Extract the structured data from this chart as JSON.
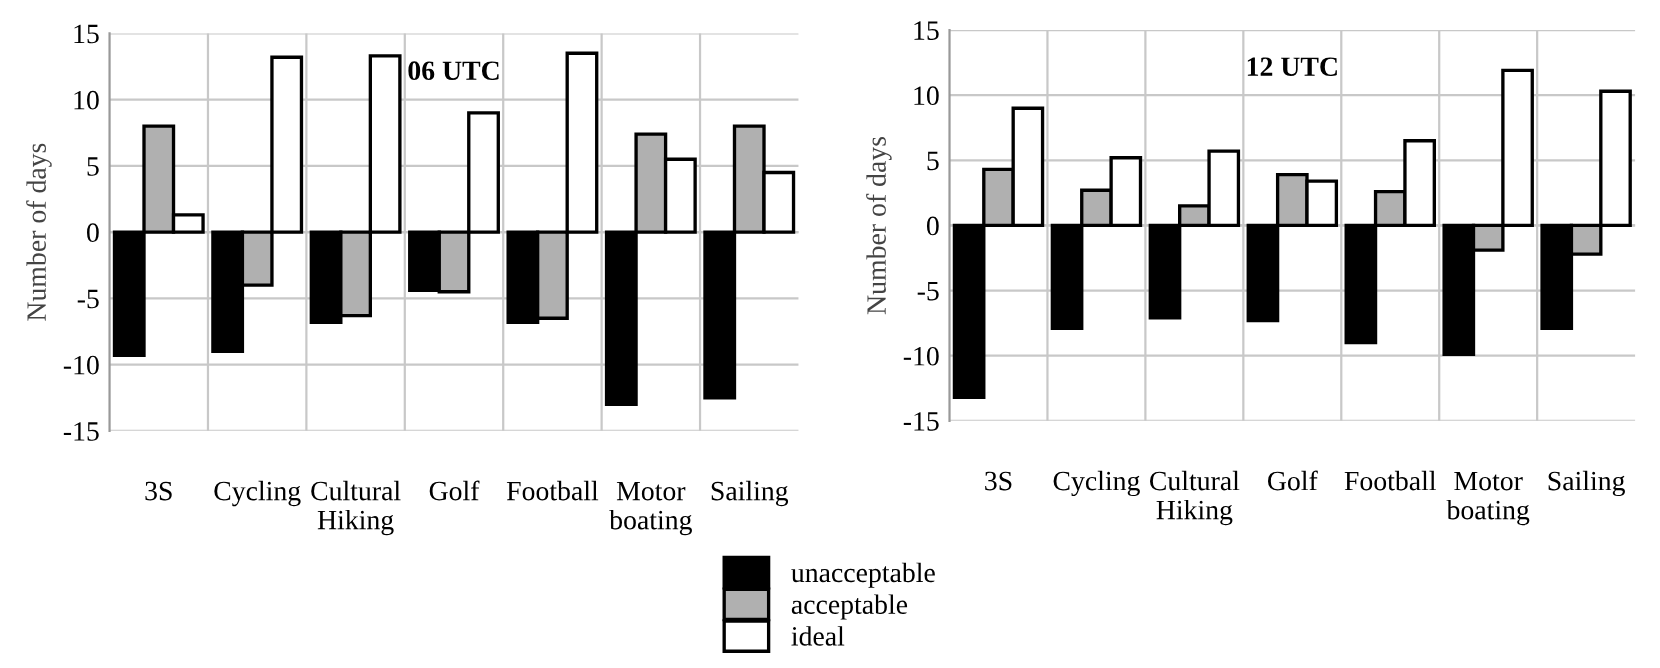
{
  "chart_data": [
    {
      "type": "bar",
      "title": "06 UTC",
      "ylabel": "Number of days",
      "categories": [
        "3S",
        "Cycling",
        "Cultural\nHiking",
        "Golf",
        "Football",
        "Motor\nboating",
        "Sailing"
      ],
      "series": [
        {
          "name": "unacceptable",
          "color": "#000000",
          "values": [
            -9.3,
            -9.0,
            -6.8,
            -4.4,
            -6.8,
            -13.0,
            -12.5
          ]
        },
        {
          "name": "acceptable",
          "color": "#b0b0b0",
          "values": [
            8.0,
            -4.0,
            -6.3,
            -4.5,
            -6.5,
            7.4,
            8.0
          ]
        },
        {
          "name": "ideal",
          "color": "#ffffff",
          "values": [
            1.3,
            13.2,
            13.3,
            9.0,
            13.5,
            5.5,
            4.5
          ]
        }
      ],
      "ylim": [
        -15,
        15
      ],
      "yticks": [
        -15,
        -10,
        -5,
        0,
        5,
        10,
        15
      ],
      "grid": true,
      "legend": "bottom"
    },
    {
      "type": "bar",
      "title": "12 UTC",
      "ylabel": "Number of days",
      "categories": [
        "3S",
        "Cycling",
        "Cultural\nHiking",
        "Golf",
        "Football",
        "Motor\nboating",
        "Sailing"
      ],
      "series": [
        {
          "color": "#000000",
          "values": [
            -13.2,
            -7.9,
            -7.1,
            -7.3,
            -9.0,
            -9.9,
            -7.9
          ]
        },
        {
          "color": "#b0b0b0",
          "values": [
            4.3,
            2.7,
            1.5,
            3.9,
            2.6,
            -1.9,
            -2.2
          ]
        },
        {
          "color": "#ffffff",
          "values": [
            9.0,
            5.2,
            5.7,
            3.4,
            6.5,
            11.9,
            10.3
          ]
        }
      ],
      "ylim": [
        -15,
        15
      ],
      "yticks": [
        -15,
        -10,
        -5,
        0,
        5,
        10,
        15
      ],
      "grid": true
    }
  ]
}
